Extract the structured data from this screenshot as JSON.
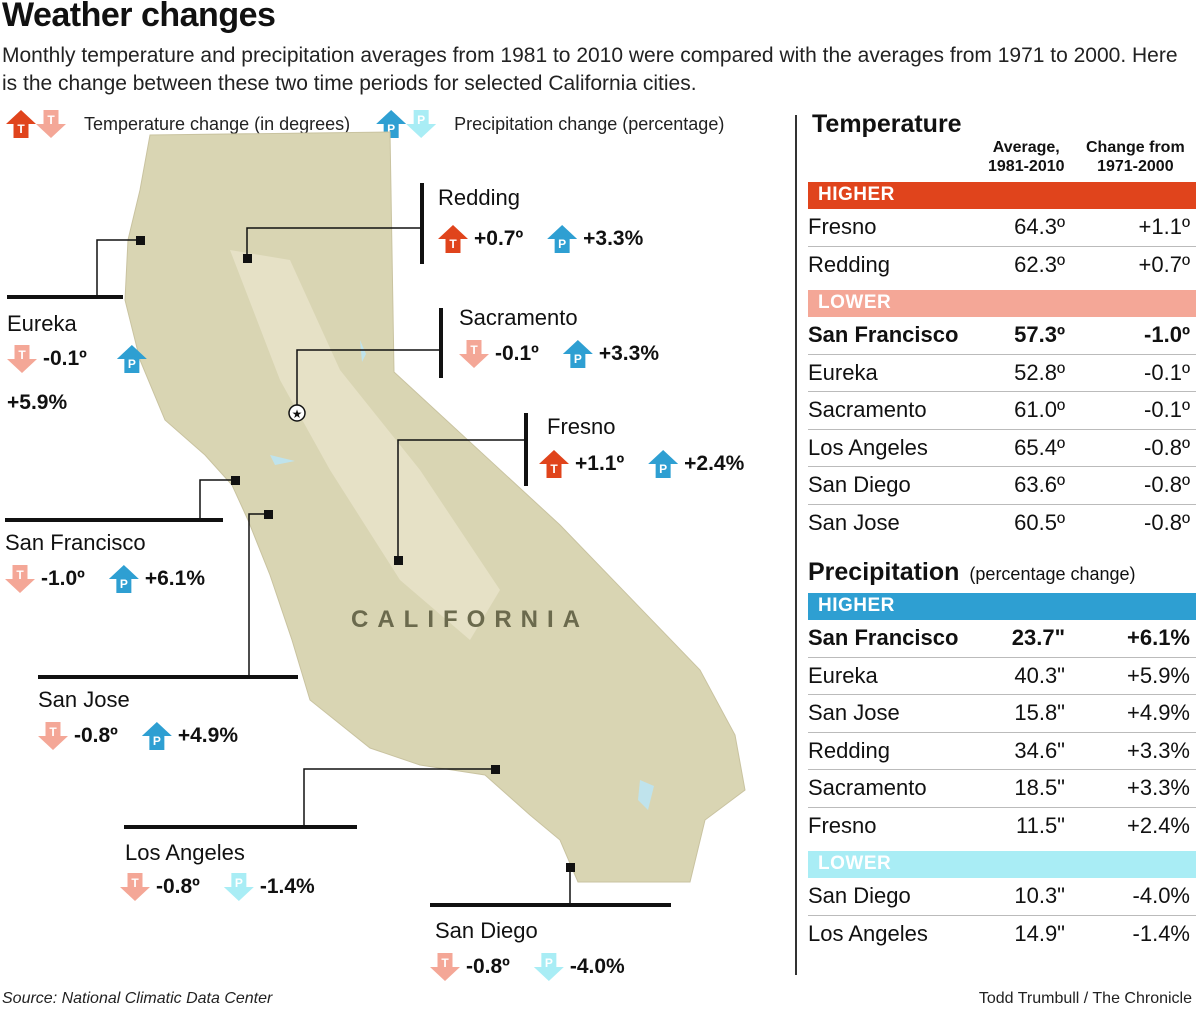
{
  "title": "Weather changes",
  "subtitle": "Monthly temperature and precipitation averages from 1981 to 2010 were compared with the averages from 1971 to 2000. Here is the change between these two time periods for selected California cities.",
  "legend": {
    "temp_label": "Temperature change (in degrees)",
    "precip_label": "Precipitation change (percentage)",
    "temp_letter": "T",
    "precip_letter": "P"
  },
  "colors": {
    "temp_higher": "#e0441c",
    "temp_lower": "#f4a797",
    "precip_higher": "#2e9fd2",
    "precip_lower": "#a9edf5",
    "land": "#d9d5b3"
  },
  "map": {
    "state_label": "CALIFORNIA",
    "capital_icon": "star-icon"
  },
  "callouts": [
    {
      "city": "Redding",
      "temp": "+0.7º",
      "temp_dir": "up",
      "precip": "+3.3%",
      "precip_dir": "up"
    },
    {
      "city": "Eureka",
      "temp": "-0.1º",
      "temp_dir": "down",
      "precip": "+5.9%",
      "precip_dir": "up"
    },
    {
      "city": "Sacramento",
      "temp": "-0.1º",
      "temp_dir": "down",
      "precip": "+3.3%",
      "precip_dir": "up"
    },
    {
      "city": "Fresno",
      "temp": "+1.1º",
      "temp_dir": "up",
      "precip": "+2.4%",
      "precip_dir": "up"
    },
    {
      "city": "San Francisco",
      "temp": "-1.0º",
      "temp_dir": "down",
      "precip": "+6.1%",
      "precip_dir": "up"
    },
    {
      "city": "San Jose",
      "temp": "-0.8º",
      "temp_dir": "down",
      "precip": "+4.9%",
      "precip_dir": "up"
    },
    {
      "city": "Los Angeles",
      "temp": "-0.8º",
      "temp_dir": "down",
      "precip": "-1.4%",
      "precip_dir": "down"
    },
    {
      "city": "San Diego",
      "temp": "-0.8º",
      "temp_dir": "down",
      "precip": "-4.0%",
      "precip_dir": "down"
    }
  ],
  "temperature": {
    "title": "Temperature",
    "col_avg": "Average,\n1981-2010",
    "col_change": "Change from\n1971-2000",
    "higher_label": "HIGHER",
    "lower_label": "LOWER",
    "higher": [
      {
        "city": "Fresno",
        "avg": "64.3º",
        "change": "+1.1º"
      },
      {
        "city": "Redding",
        "avg": "62.3º",
        "change": "+0.7º"
      }
    ],
    "lower": [
      {
        "city": "San Francisco",
        "avg": "57.3º",
        "change": "-1.0º",
        "bold": true
      },
      {
        "city": "Eureka",
        "avg": "52.8º",
        "change": "-0.1º"
      },
      {
        "city": "Sacramento",
        "avg": "61.0º",
        "change": "-0.1º"
      },
      {
        "city": "Los Angeles",
        "avg": "65.4º",
        "change": "-0.8º"
      },
      {
        "city": "San Diego",
        "avg": "63.6º",
        "change": "-0.8º"
      },
      {
        "city": "San Jose",
        "avg": "60.5º",
        "change": "-0.8º"
      }
    ]
  },
  "precipitation": {
    "title": "Precipitation",
    "note": "(percentage change)",
    "higher_label": "HIGHER",
    "lower_label": "LOWER",
    "higher": [
      {
        "city": "San Francisco",
        "avg": "23.7\"",
        "change": "+6.1%",
        "bold": true
      },
      {
        "city": "Eureka",
        "avg": "40.3\"",
        "change": "+5.9%"
      },
      {
        "city": "San Jose",
        "avg": "15.8\"",
        "change": "+4.9%"
      },
      {
        "city": "Redding",
        "avg": "34.6\"",
        "change": "+3.3%"
      },
      {
        "city": "Sacramento",
        "avg": "18.5\"",
        "change": "+3.3%"
      },
      {
        "city": "Fresno",
        "avg": "11.5\"",
        "change": "+2.4%"
      }
    ],
    "lower": [
      {
        "city": "San Diego",
        "avg": "10.3\"",
        "change": "-4.0%"
      },
      {
        "city": "Los Angeles",
        "avg": "14.9\"",
        "change": "-1.4%"
      }
    ]
  },
  "source": "Source: National Climatic Data Center",
  "credit": "Todd Trumbull / The Chronicle"
}
